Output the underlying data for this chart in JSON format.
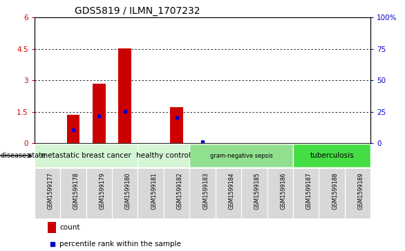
{
  "title": "GDS5819 / ILMN_1707232",
  "samples": [
    "GSM1599177",
    "GSM1599178",
    "GSM1599179",
    "GSM1599180",
    "GSM1599181",
    "GSM1599182",
    "GSM1599183",
    "GSM1599184",
    "GSM1599185",
    "GSM1599186",
    "GSM1599187",
    "GSM1599188",
    "GSM1599189"
  ],
  "count_values": [
    0.0,
    1.35,
    2.85,
    4.52,
    0.0,
    1.72,
    0.0,
    0.0,
    0.0,
    0.0,
    0.0,
    0.0,
    0.0
  ],
  "percentile_values_pct": [
    0.0,
    10.5,
    21.5,
    25.2,
    0.0,
    20.2,
    1.0,
    0.0,
    0.0,
    0.0,
    0.0,
    0.0,
    0.0
  ],
  "ylim_left": [
    0,
    6
  ],
  "ylim_right": [
    0,
    100
  ],
  "yticks_left": [
    0,
    1.5,
    3.0,
    4.5,
    6.0
  ],
  "ytick_labels_left": [
    "0",
    "1.5",
    "3",
    "4.5",
    "6"
  ],
  "yticks_right": [
    0,
    25,
    50,
    75,
    100
  ],
  "ytick_labels_right": [
    "0",
    "25",
    "50",
    "75",
    "100%"
  ],
  "groups": [
    {
      "label": "metastatic breast cancer",
      "start": 0,
      "end": 3,
      "color": "#d4f5d4"
    },
    {
      "label": "healthy control",
      "start": 4,
      "end": 5,
      "color": "#d4f5d4"
    },
    {
      "label": "gram-negative sepsis",
      "start": 6,
      "end": 9,
      "color": "#90e090"
    },
    {
      "label": "tuberculosis",
      "start": 10,
      "end": 12,
      "color": "#44dd44"
    }
  ],
  "disease_state_label": "disease state",
  "legend_count_color": "#cc0000",
  "legend_percentile_color": "#0000cc",
  "bar_color": "#cc0000",
  "dot_color": "#0000cc",
  "bar_width": 0.5,
  "cell_color": "#d8d8d8",
  "cell_edge_color": "#ffffff"
}
